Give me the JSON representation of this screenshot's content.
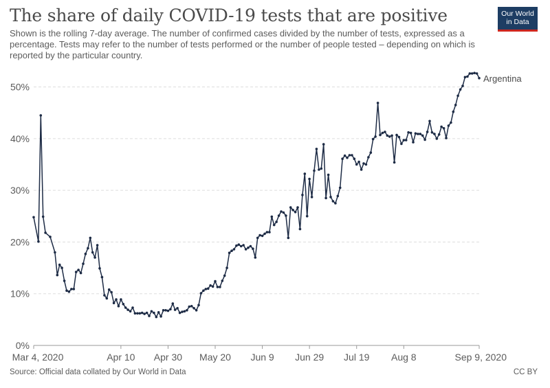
{
  "title": "The share of daily COVID-19 tests that are positive",
  "subtitle": "Shown is the rolling 7-day average. The number of confirmed cases divided by the number of tests, expressed as a percentage. Tests may refer to the number of tests performed or the number of people tested – depending on which is reported by the particular country.",
  "logo": {
    "line1": "Our World",
    "line2": "in Data"
  },
  "footer": {
    "source": "Source: Official data collated by Our World in Data",
    "license": "CC BY"
  },
  "colors": {
    "line": "#1d2b45",
    "grid": "#dddddd",
    "axis": "#5b5b5b"
  },
  "chart_data": {
    "type": "line",
    "title": "The share of daily COVID-19 tests that are positive",
    "x_unit": "days since Mar 4, 2020",
    "xlim": [
      0,
      189
    ],
    "ylim": [
      0,
      53
    ],
    "y_ticks": [
      {
        "value": 0,
        "label": "0%"
      },
      {
        "value": 10,
        "label": "10%"
      },
      {
        "value": 20,
        "label": "20%"
      },
      {
        "value": 30,
        "label": "30%"
      },
      {
        "value": 40,
        "label": "40%"
      },
      {
        "value": 50,
        "label": "50%"
      }
    ],
    "x_ticks": [
      {
        "value": 0,
        "label": "Mar 4, 2020"
      },
      {
        "value": 37,
        "label": "Apr 10"
      },
      {
        "value": 57,
        "label": "Apr 30"
      },
      {
        "value": 77,
        "label": "May 20"
      },
      {
        "value": 97,
        "label": "Jun 9"
      },
      {
        "value": 117,
        "label": "Jun 29"
      },
      {
        "value": 137,
        "label": "Jul 19"
      },
      {
        "value": 157,
        "label": "Aug 8"
      },
      {
        "value": 189,
        "label": "Sep 9, 2020"
      }
    ],
    "grid": true,
    "series": [
      {
        "name": "Argentina",
        "x": [
          0,
          2,
          3,
          4,
          5,
          7,
          9,
          10,
          11,
          12,
          13,
          14,
          15,
          16,
          17,
          18,
          19,
          20,
          21,
          22,
          23,
          24,
          25,
          26,
          27,
          28,
          29,
          30,
          31,
          32,
          33,
          34,
          35,
          36,
          37,
          38,
          39,
          40,
          41,
          42,
          43,
          44,
          45,
          46,
          47,
          48,
          49,
          50,
          51,
          52,
          53,
          54,
          55,
          56,
          57,
          58,
          59,
          60,
          61,
          62,
          63,
          64,
          65,
          66,
          67,
          68,
          69,
          70,
          71,
          72,
          73,
          74,
          75,
          76,
          77,
          78,
          79,
          80,
          81,
          82,
          83,
          84,
          85,
          86,
          87,
          88,
          89,
          90,
          91,
          92,
          93,
          94,
          95,
          96,
          97,
          98,
          99,
          100,
          101,
          102,
          103,
          104,
          105,
          106,
          107,
          108,
          109,
          110,
          111,
          112,
          113,
          114,
          115,
          116,
          117,
          118,
          119,
          120,
          121,
          122,
          123,
          124,
          125,
          126,
          127,
          128,
          129,
          130,
          131,
          132,
          133,
          134,
          135,
          136,
          137,
          138,
          139,
          140,
          141,
          142,
          143,
          144,
          145,
          146,
          147,
          148,
          149,
          150,
          151,
          152,
          153,
          154,
          155,
          156,
          157,
          158,
          159,
          160,
          161,
          162,
          163,
          164,
          165,
          166,
          167,
          168,
          169,
          170,
          171,
          172,
          173,
          174,
          175,
          176,
          177,
          178,
          179,
          180,
          181,
          182,
          183,
          184,
          185,
          186,
          187,
          188,
          189
        ],
        "values": [
          24.8,
          20.1,
          44.5,
          24.9,
          21.8,
          21.0,
          18.0,
          13.6,
          15.6,
          15.0,
          12.5,
          10.6,
          10.4,
          10.9,
          10.9,
          14.2,
          14.6,
          14.0,
          15.8,
          17.7,
          18.8,
          20.8,
          18.0,
          17.0,
          19.4,
          14.9,
          13.2,
          9.7,
          9.1,
          10.8,
          10.3,
          8.2,
          8.9,
          7.6,
          8.9,
          8.0,
          7.3,
          6.9,
          6.6,
          7.3,
          6.2,
          6.2,
          6.2,
          6.3,
          6.1,
          6.3,
          5.7,
          6.6,
          6.3,
          5.5,
          6.4,
          5.6,
          6.8,
          6.8,
          6.7,
          7.0,
          8.1,
          6.9,
          7.2,
          6.3,
          6.5,
          6.6,
          6.8,
          7.5,
          7.6,
          7.2,
          6.8,
          7.8,
          10.1,
          10.6,
          10.9,
          11.0,
          11.6,
          11.4,
          12.4,
          11.3,
          11.3,
          12.5,
          13.5,
          15.0,
          17.9,
          18.3,
          18.6,
          19.3,
          19.5,
          19.2,
          19.4,
          18.6,
          18.9,
          19.2,
          18.7,
          17.0,
          20.8,
          21.3,
          21.2,
          21.6,
          21.9,
          21.9,
          24.9,
          23.3,
          23.9,
          25.1,
          25.9,
          25.7,
          25.1,
          20.8,
          26.7,
          26.2,
          25.8,
          26.7,
          22.5,
          29.1,
          33.2,
          25.0,
          32.2,
          28.7,
          33.8,
          38.0,
          34.0,
          34.2,
          38.9,
          28.5,
          33.0,
          28.7,
          27.9,
          27.5,
          28.9,
          30.5,
          36.1,
          36.7,
          36.3,
          36.8,
          36.8,
          36.1,
          35.0,
          35.5,
          34.0,
          35.2,
          35.0,
          36.4,
          37.3,
          39.9,
          40.4,
          46.9,
          40.7,
          41.1,
          41.3,
          40.6,
          40.4,
          40.6,
          35.4,
          40.7,
          40.3,
          39.0,
          39.7,
          39.7,
          41.2,
          41.1,
          39.3,
          41.0,
          40.9,
          40.9,
          40.6,
          39.8,
          41.3,
          43.4,
          41.2,
          40.9,
          40.0,
          40.8,
          42.3,
          42.0,
          40.1,
          42.5,
          43.1,
          45.2,
          46.5,
          48.3,
          49.5,
          50.2,
          51.9,
          52.0,
          52.6,
          52.6,
          52.7,
          52.6,
          51.7
        ],
        "end_label": "Argentina"
      }
    ]
  }
}
